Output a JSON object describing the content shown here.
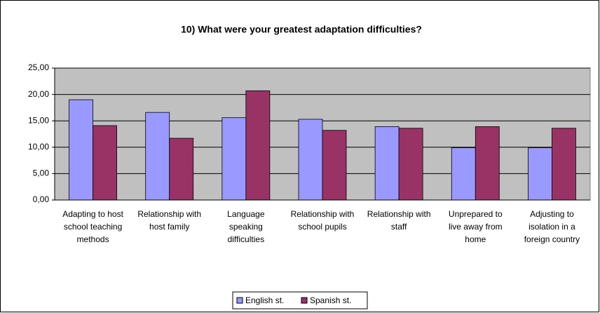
{
  "chart_data": {
    "type": "bar",
    "title": "10) What were your greatest adaptation difficulties?",
    "categories": [
      "Adapting to host school teaching methods",
      "Relationship with host family",
      "Language speaking difficulties",
      "Relationship with school pupils",
      "Relationship with staff",
      "Unprepared to live away from home",
      "Adjusting to isolation in a foreign country"
    ],
    "series": [
      {
        "name": "English st.",
        "color": "#9999ff",
        "values": [
          19.0,
          16.6,
          15.6,
          15.3,
          13.9,
          9.9,
          9.9
        ]
      },
      {
        "name": "Spanish st.",
        "color": "#993366",
        "values": [
          14.1,
          11.7,
          20.7,
          13.2,
          13.6,
          13.9,
          13.6
        ]
      }
    ],
    "ylim": [
      0,
      25
    ],
    "yticks": [
      {
        "value": 0,
        "label": "0,00"
      },
      {
        "value": 5,
        "label": "5,00"
      },
      {
        "value": 10,
        "label": "10,00"
      },
      {
        "value": 15,
        "label": "15,00"
      },
      {
        "value": 20,
        "label": "20,00"
      },
      {
        "value": 25,
        "label": "25,00"
      }
    ],
    "grid": true,
    "legend": "bottom",
    "plot_background": "#c0c0c0"
  }
}
